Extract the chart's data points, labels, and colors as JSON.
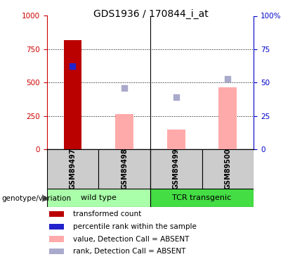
{
  "title": "GDS1936 / 170844_i_at",
  "samples": [
    "GSM89497",
    "GSM89498",
    "GSM89499",
    "GSM89500"
  ],
  "transformed_count": [
    820,
    null,
    null,
    null
  ],
  "percentile_rank": [
    625,
    null,
    null,
    null
  ],
  "absent_value": [
    null,
    265,
    145,
    465
  ],
  "absent_rank": [
    null,
    460,
    390,
    530
  ],
  "ylim_left": [
    0,
    1000
  ],
  "ylim_right": [
    0,
    100
  ],
  "yticks_left": [
    0,
    250,
    500,
    750,
    1000
  ],
  "yticks_right": [
    0,
    25,
    50,
    75,
    100
  ],
  "color_red": "#bb0000",
  "color_blue": "#2222cc",
  "color_pink": "#ffaaaa",
  "color_lavender": "#aaaacc",
  "groups": [
    {
      "label": "wild type",
      "samples": [
        0,
        1
      ],
      "color": "#aaffaa"
    },
    {
      "label": "TCR transgenic",
      "samples": [
        2,
        3
      ],
      "color": "#44dd44"
    }
  ],
  "bar_width": 0.35,
  "left_axis_color": "#cc0000",
  "right_axis_color": "#0000cc",
  "background_plot": "#ffffff",
  "sample_bg_color": "#cccccc",
  "legend_items": [
    {
      "color": "#bb0000",
      "label": "transformed count"
    },
    {
      "color": "#2222cc",
      "label": "percentile rank within the sample"
    },
    {
      "color": "#ffaaaa",
      "label": "value, Detection Call = ABSENT"
    },
    {
      "color": "#aaaacc",
      "label": "rank, Detection Call = ABSENT"
    }
  ]
}
